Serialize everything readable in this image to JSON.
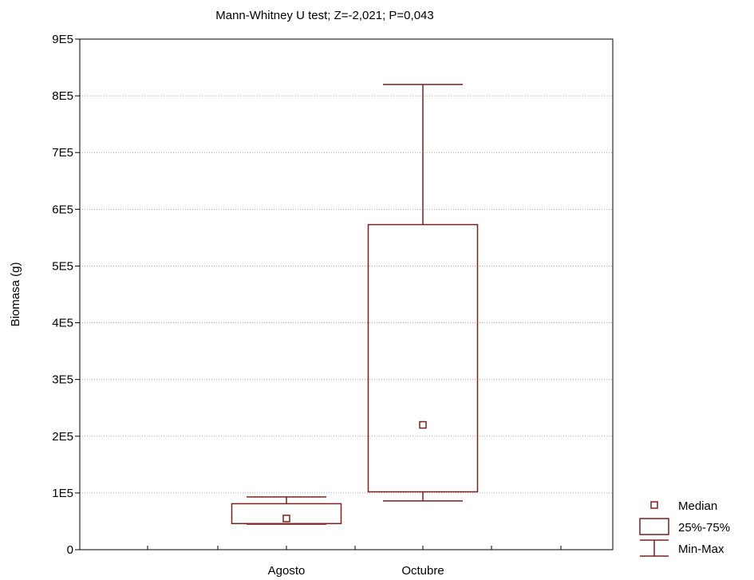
{
  "chart_data": {
    "type": "boxplot",
    "title": "Mann-Whitney U test; Z=-2,021; P=0,043",
    "xlabel": "",
    "ylabel": "Biomasa (g)",
    "ylim": [
      0,
      900000
    ],
    "yticks": [
      {
        "value": 0,
        "label": "0"
      },
      {
        "value": 100000,
        "label": "1E5"
      },
      {
        "value": 200000,
        "label": "2E5"
      },
      {
        "value": 300000,
        "label": "3E5"
      },
      {
        "value": 400000,
        "label": "4E5"
      },
      {
        "value": 500000,
        "label": "5E5"
      },
      {
        "value": 600000,
        "label": "6E5"
      },
      {
        "value": 700000,
        "label": "7E5"
      },
      {
        "value": 800000,
        "label": "8E5"
      },
      {
        "value": 900000,
        "label": "9E5"
      }
    ],
    "grid": "horizontal",
    "legend_position": "bottom-right",
    "legend": {
      "median": "Median",
      "box": "25%-75%",
      "whisker": "Min-Max"
    },
    "categories": [
      "Agosto",
      "Octubre"
    ],
    "boxes": [
      {
        "category": "Agosto",
        "min": 45000,
        "q1": 46000,
        "median": 55000,
        "q3": 81000,
        "max": 93000
      },
      {
        "category": "Octubre",
        "min": 86000,
        "q1": 102000,
        "median": 220000,
        "q3": 573000,
        "max": 820000
      }
    ],
    "color": "#7b1f1f"
  }
}
